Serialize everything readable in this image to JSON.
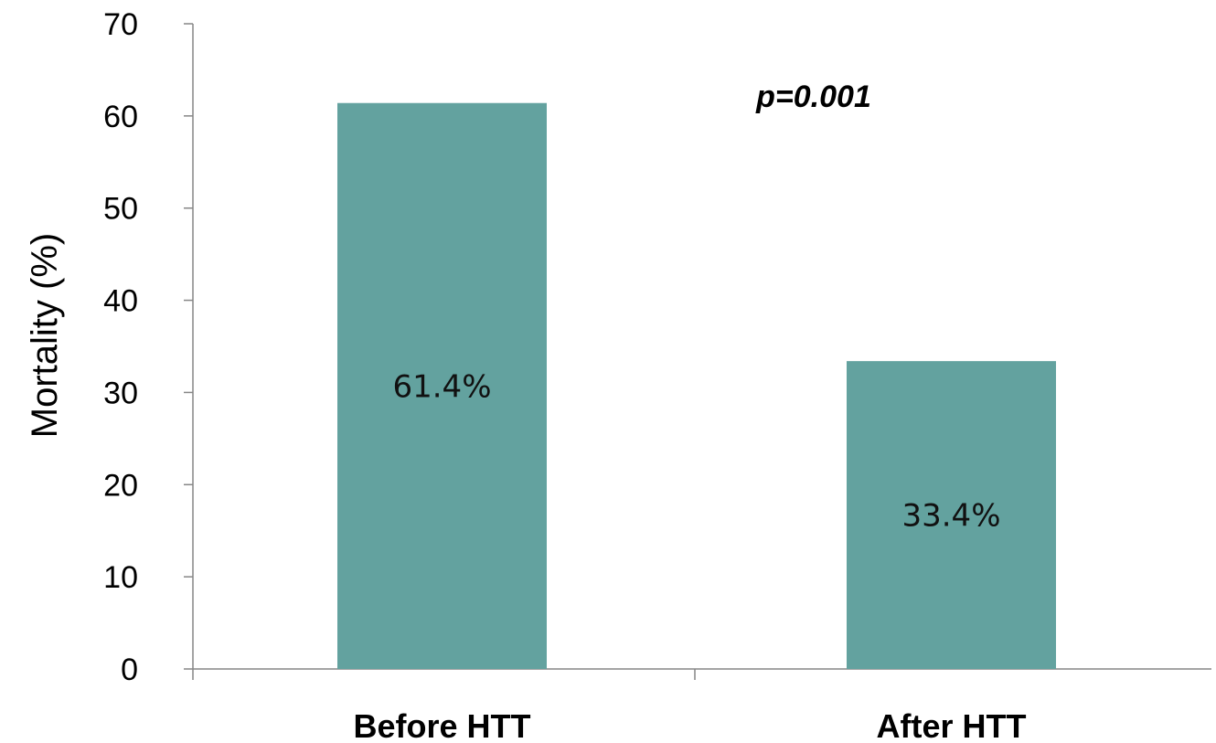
{
  "chart_data": {
    "type": "bar",
    "categories": [
      "Before HTT",
      "After HTT"
    ],
    "values": [
      61.4,
      33.4
    ],
    "data_labels": [
      "61.4%",
      "33.4%"
    ],
    "ylabel": "Mortality (%)",
    "xlabel": "",
    "ylim": [
      0,
      70
    ],
    "yticks": [
      0,
      10,
      20,
      30,
      40,
      50,
      60,
      70
    ],
    "annotation": "p=0.001",
    "grid": false,
    "legend": "none",
    "bar_color": "#63a29f"
  }
}
